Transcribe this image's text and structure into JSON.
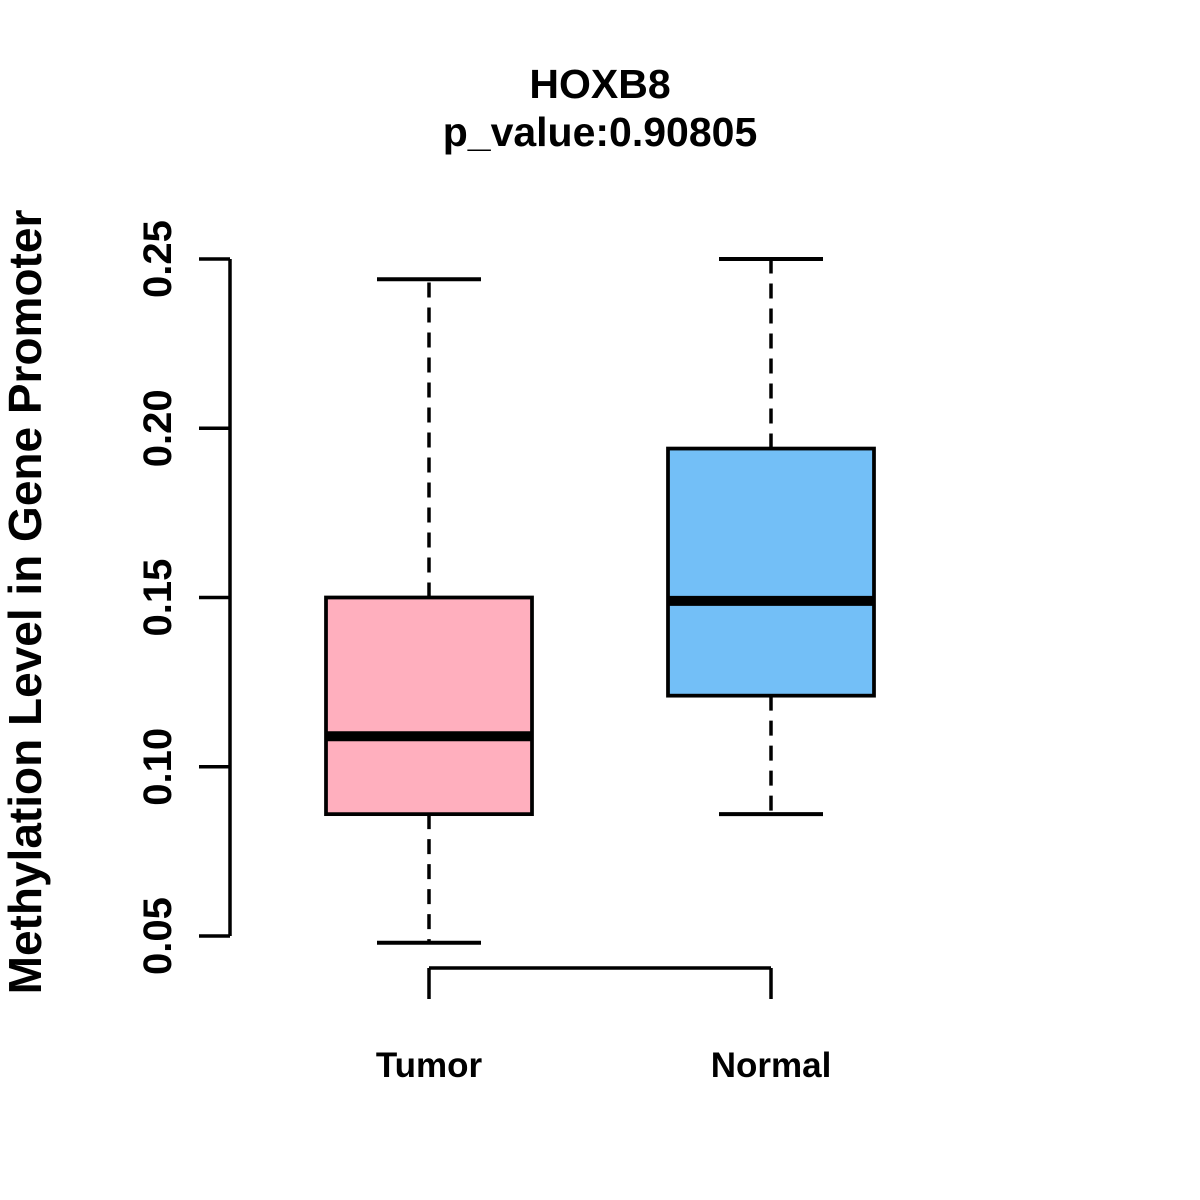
{
  "figure": {
    "title": "HOXB8",
    "subtitle": "p_value:0.90805"
  },
  "chart_data": {
    "type": "boxplot",
    "title": "HOXB8",
    "subtitle": "p_value:0.90805",
    "xlabel": "",
    "ylabel": "Methylation Level in Gene Promoter",
    "ylim": [
      0.05,
      0.25
    ],
    "yticks": [
      0.05,
      0.1,
      0.15,
      0.2,
      0.25
    ],
    "ytick_labels": [
      "0.05",
      "0.10",
      "0.15",
      "0.20",
      "0.25"
    ],
    "categories": [
      "Tumor",
      "Normal"
    ],
    "grid": "off",
    "legend": "none",
    "series": [
      {
        "name": "Tumor",
        "color": "#FFAFBE",
        "lower_whisker": 0.048,
        "q1": 0.086,
        "median": 0.109,
        "q3": 0.15,
        "upper_whisker": 0.244
      },
      {
        "name": "Normal",
        "color": "#73BFF7",
        "lower_whisker": 0.086,
        "q1": 0.121,
        "median": 0.149,
        "q3": 0.194,
        "upper_whisker": 0.25
      }
    ],
    "style": {
      "box_border_color": "#000000",
      "whisker_style": "dashed",
      "background": "#ffffff"
    }
  }
}
